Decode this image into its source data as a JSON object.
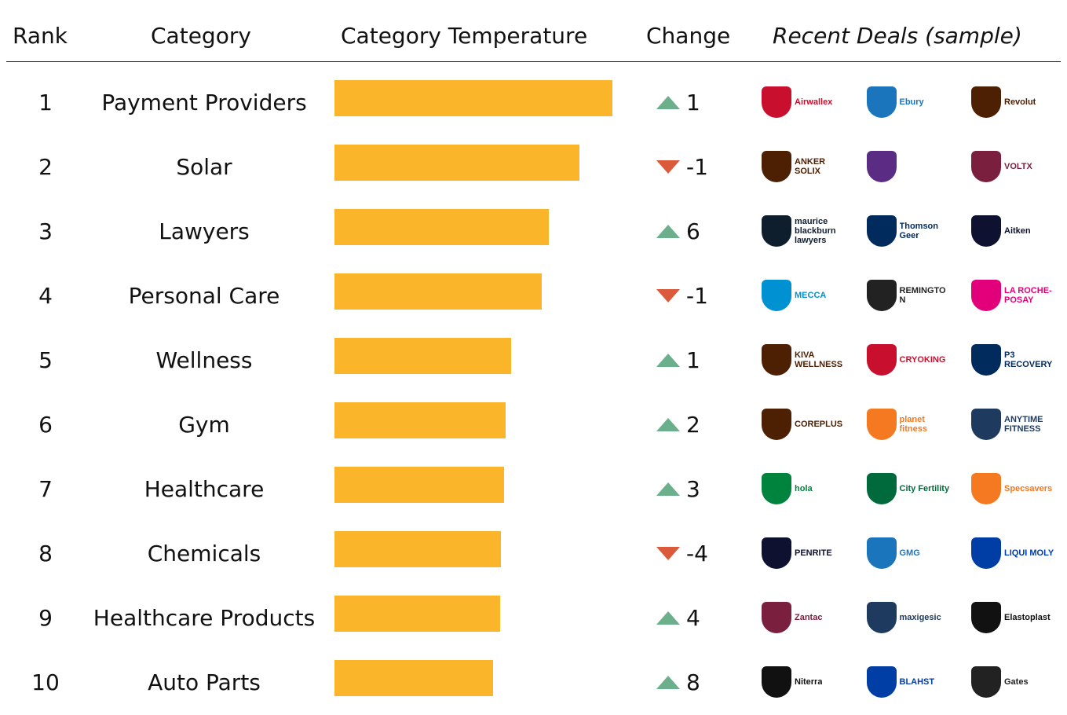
{
  "columns": {
    "rank": "Rank",
    "category": "Category",
    "temperature": "Category Temperature",
    "change": "Change",
    "deals": "Recent Deals (sample)"
  },
  "colors": {
    "bar": "#FBB52A",
    "up": "#6BAF8D",
    "down": "#DB5A3C",
    "rule": "#222222"
  },
  "chart_data": {
    "type": "bar",
    "orientation": "horizontal",
    "title": "",
    "xlabel": "",
    "ylabel": "",
    "categories": [
      "Payment Providers",
      "Solar",
      "Lawyers",
      "Personal Care",
      "Wellness",
      "Gym",
      "Healthcare",
      "Chemicals",
      "Healthcare Products",
      "Auto Parts"
    ],
    "values": [
      100,
      88,
      77,
      74.5,
      63.5,
      61.5,
      61,
      60,
      59.5,
      57
    ],
    "xlim": [
      0,
      100
    ],
    "grid": false,
    "legend": "none"
  },
  "rows": [
    {
      "rank": "1",
      "category": "Payment Providers",
      "change": "1",
      "dir": "up",
      "deals": [
        {
          "icon": "essendon-logo",
          "brand": "Airwallex",
          "c": "#C8102E"
        },
        {
          "icon": "adelaide-united-logo",
          "brand": "Ebury",
          "c": "#1B75BC"
        },
        {
          "icon": "hawks-logo",
          "brand": "Revolut",
          "c": "#4D2004"
        }
      ]
    },
    {
      "rank": "2",
      "category": "Solar",
      "change": "-1",
      "dir": "down",
      "deals": [
        {
          "icon": "hawks-logo",
          "brand": "ANKER SOLIX",
          "c": "#4D2004"
        },
        {
          "icon": "perth-glory-logo",
          "brand": "",
          "c": "#5B2C83"
        },
        {
          "icon": "sea-eagles-logo",
          "brand": "VOLTX",
          "c": "#7A1F3D"
        }
      ]
    },
    {
      "rank": "3",
      "category": "Lawyers",
      "change": "6",
      "dir": "up",
      "deals": [
        {
          "icon": "carlton-logo",
          "brand": "maurice blackburn lawyers",
          "c": "#0E1E2D"
        },
        {
          "icon": "crows-logo",
          "brand": "Thomson Geer",
          "c": "#002B5C"
        },
        {
          "icon": "melbourne-logo",
          "brand": "Aitken",
          "c": "#0F1131"
        }
      ]
    },
    {
      "rank": "4",
      "category": "Personal Care",
      "change": "-1",
      "dir": "down",
      "deals": [
        {
          "icon": "ao-logo",
          "brand": "MECCA",
          "c": "#0091D2"
        },
        {
          "icon": "wallabies-logo",
          "brand": "REMINGTON",
          "c": "#222222"
        },
        {
          "icon": "sixers-logo",
          "brand": "LA ROCHE-POSAY",
          "c": "#E2007A"
        }
      ]
    },
    {
      "rank": "5",
      "category": "Wellness",
      "change": "1",
      "dir": "up",
      "deals": [
        {
          "icon": "hawks-logo",
          "brand": "KIVA WELLNESS",
          "c": "#4D2004"
        },
        {
          "icon": "jets-logo",
          "brand": "CRYOKING",
          "c": "#C8102E"
        },
        {
          "icon": "roosters-logo",
          "brand": "P3 RECOVERY",
          "c": "#002B5C"
        }
      ]
    },
    {
      "rank": "6",
      "category": "Gym",
      "change": "2",
      "dir": "up",
      "deals": [
        {
          "icon": "hawks-logo",
          "brand": "COREPLUS",
          "c": "#4D2004"
        },
        {
          "icon": "giants-logo",
          "brand": "planet fitness",
          "c": "#F47920"
        },
        {
          "icon": "warriors-logo",
          "brand": "ANYTIME FITNESS",
          "c": "#1E3A5F"
        }
      ]
    },
    {
      "rank": "7",
      "category": "Healthcare",
      "change": "3",
      "dir": "up",
      "deals": [
        {
          "icon": "cricket-australia-logo",
          "brand": "hola",
          "c": "#00843D"
        },
        {
          "icon": "rabbitohs-logo",
          "brand": "City Fertility",
          "c": "#006A3C"
        },
        {
          "icon": "giants-netball-logo",
          "brand": "Specsavers",
          "c": "#F47920"
        }
      ]
    },
    {
      "rank": "8",
      "category": "Chemicals",
      "change": "-4",
      "dir": "down",
      "deals": [
        {
          "icon": "melbourne-logo",
          "brand": "PENRITE",
          "c": "#0F1131"
        },
        {
          "icon": "tickford-logo",
          "brand": "GMG",
          "c": "#1B75BC"
        },
        {
          "icon": "brt-logo",
          "brand": "LIQUI MOLY",
          "c": "#003DA5"
        }
      ]
    },
    {
      "rank": "9",
      "category": "Healthcare Products",
      "change": "4",
      "dir": "up",
      "deals": [
        {
          "icon": "sea-eagles-logo",
          "brand": "Zantac",
          "c": "#7A1F3D"
        },
        {
          "icon": "warriors-logo",
          "brand": "maxigesic",
          "c": "#1E3A5F"
        },
        {
          "icon": "richmond-logo",
          "brand": "Elastoplast",
          "c": "#111111"
        }
      ]
    },
    {
      "rank": "10",
      "category": "Auto Parts",
      "change": "8",
      "dir": "up",
      "deals": [
        {
          "icon": "collingwood-logo",
          "brand": "Niterra",
          "c": "#111111"
        },
        {
          "icon": "brt-logo",
          "brand": "BLAHST",
          "c": "#003DA5"
        },
        {
          "icon": "grove-logo",
          "brand": "Gates",
          "c": "#222222"
        }
      ]
    }
  ]
}
